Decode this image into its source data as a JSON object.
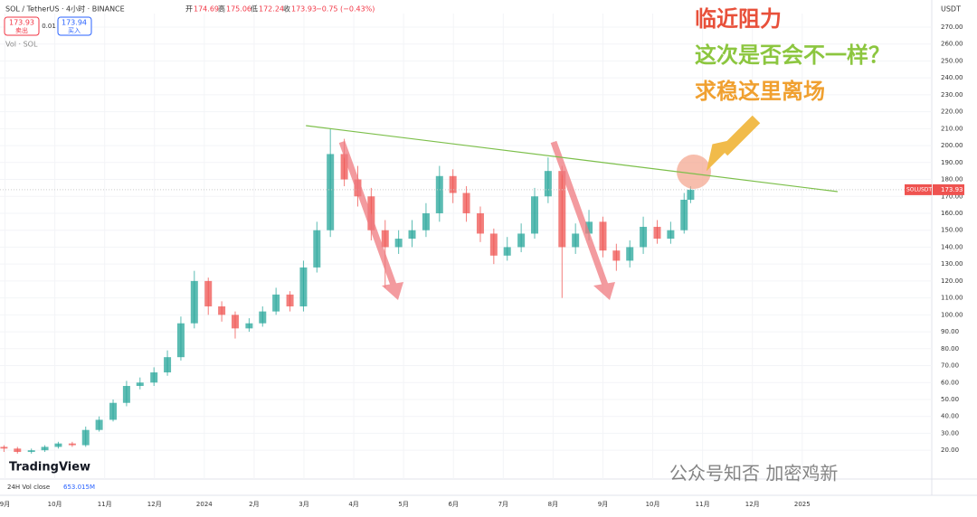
{
  "chart_data": {
    "type": "candlestick",
    "header": {
      "symbol": "SOL / TetherUS · 4小时 · BINANCE",
      "ohlc": [
        {
          "label": "开",
          "value": 174.69
        },
        {
          "label": "高",
          "value": 175.06
        },
        {
          "label": "低",
          "value": 172.24
        },
        {
          "label": "收",
          "value": 173.93
        }
      ],
      "change": "−0.75 (−0.43%)"
    },
    "buttons": {
      "sell_price": 173.93,
      "sell": "卖出",
      "spread": 0.01,
      "buy_price": 173.94,
      "buy": "买入"
    },
    "volume_label": "Vol · SOL",
    "currency": "USDT",
    "logo": "TradingView",
    "footer": {
      "label": "24H Vol close",
      "value": "653.015M"
    },
    "annotations": [
      {
        "text": "临近阻力",
        "color": "#e8503a"
      },
      {
        "text": "这次是否会不一样？",
        "color": "#8cc63f"
      },
      {
        "text": "求稳这里离场",
        "color": "#f0a030"
      }
    ],
    "watermark": "公众号知否 加密鸡新",
    "price_tag": {
      "name": "SOLUSDT",
      "value": 173.93
    },
    "x": [
      -0.02,
      0.25,
      0.53,
      0.8,
      1.07,
      1.35,
      1.62,
      1.89,
      2.17,
      2.44,
      2.71,
      2.99,
      3.26,
      3.53,
      3.8,
      4.08,
      4.35,
      4.62,
      4.9,
      5.17,
      5.44,
      5.72,
      5.99,
      6.26,
      6.53,
      6.81,
      7.08,
      7.35,
      7.63,
      7.9,
      8.17,
      8.45,
      8.72,
      8.99,
      9.26,
      9.54,
      9.81,
      10.08,
      10.36,
      10.63,
      10.9,
      11.18,
      11.45,
      11.72,
      12.0,
      12.27,
      12.54,
      12.81,
      13.09,
      13.36,
      13.63,
      13.76
    ],
    "open": [
      22,
      21,
      19,
      20,
      22,
      24,
      23,
      32,
      38,
      48,
      58,
      60,
      66,
      75,
      95,
      120,
      105,
      100,
      92,
      95,
      102,
      112,
      105,
      128,
      150,
      195,
      180,
      170,
      150,
      140,
      145,
      150,
      160,
      182,
      172,
      160,
      148,
      135,
      140,
      148,
      170,
      185,
      140,
      148,
      155,
      138,
      132,
      140,
      152,
      145,
      150,
      168
    ],
    "high": [
      23,
      22,
      21,
      23,
      25,
      25,
      34,
      40,
      50,
      61,
      63,
      69,
      79,
      99,
      126,
      122,
      108,
      102,
      98,
      105,
      116,
      114,
      132,
      155,
      210,
      204,
      188,
      175,
      156,
      150,
      156,
      166,
      188,
      186,
      176,
      164,
      151,
      146,
      154,
      175,
      193,
      188,
      154,
      162,
      158,
      142,
      144,
      158,
      156,
      155,
      172,
      176
    ],
    "low": [
      19,
      18,
      18,
      19,
      21,
      22,
      22,
      31,
      37,
      46,
      56,
      58,
      64,
      73,
      92,
      100,
      96,
      86,
      90,
      93,
      100,
      102,
      102,
      125,
      146,
      176,
      164,
      144,
      116,
      136,
      140,
      146,
      155,
      166,
      155,
      143,
      130,
      132,
      137,
      145,
      166,
      110,
      136,
      144,
      134,
      126,
      128,
      136,
      142,
      142,
      148,
      166
    ],
    "close": [
      21,
      19,
      20,
      22,
      24,
      23,
      32,
      38,
      48,
      58,
      60,
      66,
      75,
      95,
      120,
      105,
      100,
      92,
      95,
      102,
      112,
      105,
      128,
      150,
      195,
      180,
      170,
      150,
      140,
      145,
      150,
      160,
      182,
      172,
      160,
      148,
      135,
      140,
      148,
      170,
      185,
      140,
      148,
      155,
      138,
      132,
      140,
      152,
      145,
      150,
      168,
      173.93
    ],
    "up_color": "#26a69a",
    "down_color": "#ef5350",
    "trendline": {
      "x": [
        6.04,
        16.71
      ],
      "y": [
        211.8,
        172.8
      ],
      "color": "#7cbf4a"
    },
    "xlim": [
      -0.1,
      18.6
    ],
    "xticks": [
      {
        "value": 0,
        "label": "9月"
      },
      {
        "value": 1,
        "label": "10月"
      },
      {
        "value": 2,
        "label": "11月"
      },
      {
        "value": 3,
        "label": "12月"
      },
      {
        "value": 4,
        "label": "2024"
      },
      {
        "value": 5,
        "label": "2月"
      },
      {
        "value": 6,
        "label": "3月"
      },
      {
        "value": 7,
        "label": "4月"
      },
      {
        "value": 8,
        "label": "5月"
      },
      {
        "value": 9,
        "label": "6月"
      },
      {
        "value": 10,
        "label": "7月"
      },
      {
        "value": 11,
        "label": "8月"
      },
      {
        "value": 12,
        "label": "9月"
      },
      {
        "value": 13,
        "label": "10月"
      },
      {
        "value": 14,
        "label": "11月"
      },
      {
        "value": 15,
        "label": "12月"
      },
      {
        "value": 16,
        "label": "2025"
      }
    ],
    "ylim": [
      3,
      278
    ],
    "yticks": [
      {
        "value": 20,
        "label": "20.00"
      },
      {
        "value": 30,
        "label": "30.00"
      },
      {
        "value": 40,
        "label": "40.00"
      },
      {
        "value": 50,
        "label": "50.00"
      },
      {
        "value": 60,
        "label": "60.00"
      },
      {
        "value": 70,
        "label": "70.00"
      },
      {
        "value": 80,
        "label": "80.00"
      },
      {
        "value": 90,
        "label": "90.00"
      },
      {
        "value": 100,
        "label": "100.00"
      },
      {
        "value": 110,
        "label": "110.00"
      },
      {
        "value": 120,
        "label": "120.00"
      },
      {
        "value": 130,
        "label": "130.00"
      },
      {
        "value": 140,
        "label": "140.00"
      },
      {
        "value": 150,
        "label": "150.00"
      },
      {
        "value": 160,
        "label": "160.00"
      },
      {
        "value": 170,
        "label": "170.00"
      },
      {
        "value": 180,
        "label": "180.00"
      },
      {
        "value": 190,
        "label": "190.00"
      },
      {
        "value": 200,
        "label": "200.00"
      },
      {
        "value": 210,
        "label": "210.00"
      },
      {
        "value": 220,
        "label": "220.00"
      },
      {
        "value": 230,
        "label": "230.00"
      },
      {
        "value": 240,
        "label": "240.00"
      },
      {
        "value": 250,
        "label": "250.00"
      },
      {
        "value": 260,
        "label": "260.00"
      },
      {
        "value": 270,
        "label": "270.00"
      }
    ]
  }
}
